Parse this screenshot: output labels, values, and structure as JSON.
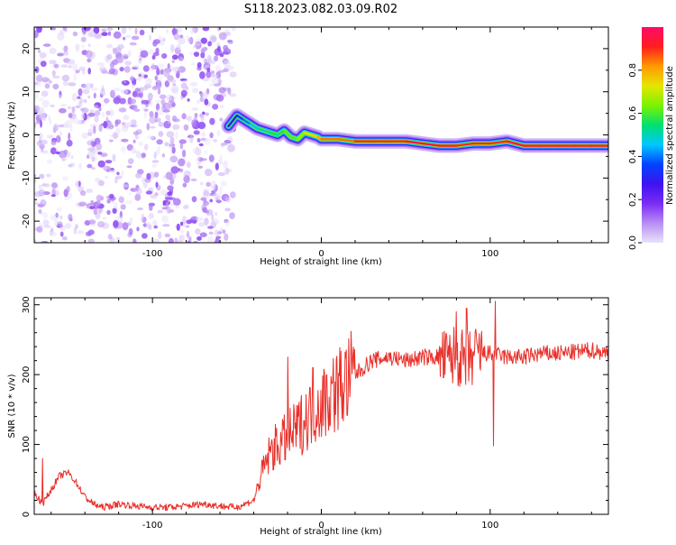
{
  "title": "S118.2023.082.03.09.R02",
  "colors": {
    "snr_line": "#e8302a",
    "axis": "#000000",
    "colorbar_stops": [
      "#e9e3fb",
      "#b98cf3",
      "#7a2cf5",
      "#3e12f0",
      "#0044ff",
      "#00c8ff",
      "#00e070",
      "#7cf200",
      "#e6e600",
      "#ff9a00",
      "#ff1e1e",
      "#ff0b6a"
    ]
  },
  "chart_data": [
    {
      "type": "heatmap",
      "name": "spectrogram",
      "xlabel": "Height of straight line (km)",
      "ylabel": "Frequency (Hz)",
      "xlim": [
        -170,
        170
      ],
      "ylim": [
        -25,
        25
      ],
      "x_ticks": [
        -100,
        0,
        100
      ],
      "y_ticks": [
        -20,
        -10,
        0,
        10,
        20
      ],
      "x_tick_labels": [
        "-100",
        "0",
        "100"
      ],
      "y_tick_labels": [
        "-20",
        "-10",
        "0",
        "10",
        "20"
      ],
      "grid": false,
      "noise_region_x": [
        -170,
        -52
      ],
      "signal_ridge": {
        "x": [
          -55,
          -50,
          -46,
          -42,
          -38,
          -34,
          -30,
          -26,
          -22,
          -18,
          -14,
          -10,
          -6,
          -2,
          0,
          10,
          20,
          30,
          40,
          50,
          60,
          70,
          80,
          90,
          100,
          110,
          120,
          130,
          140,
          150,
          160,
          170
        ],
        "frequency_hz": [
          2.0,
          4.5,
          3.5,
          2.5,
          1.5,
          1.0,
          0.5,
          0.0,
          1.0,
          -0.5,
          -1.0,
          0.5,
          0.0,
          -0.5,
          -1.0,
          -1.0,
          -1.5,
          -1.5,
          -1.5,
          -1.5,
          -2.0,
          -2.5,
          -2.5,
          -2.0,
          -2.0,
          -1.5,
          -2.5,
          -2.5,
          -2.5,
          -2.5,
          -2.5,
          -2.5
        ],
        "amplitude": [
          0.3,
          0.35,
          0.4,
          0.45,
          0.5,
          0.5,
          0.55,
          0.55,
          0.6,
          0.6,
          0.65,
          0.7,
          0.75,
          0.8,
          0.85,
          0.85,
          0.9,
          0.9,
          0.9,
          0.95,
          0.95,
          0.95,
          0.9,
          0.9,
          0.9,
          0.95,
          0.95,
          0.95,
          0.95,
          0.95,
          0.95,
          0.95
        ]
      },
      "colorbar": {
        "label": "Normalized spectral amplitude",
        "range": [
          0.0,
          1.0
        ],
        "ticks": [
          0.0,
          0.2,
          0.4,
          0.6,
          0.8
        ],
        "tick_labels": [
          "0.0",
          "0.2",
          "0.4",
          "0.6",
          "0.8"
        ]
      }
    },
    {
      "type": "line",
      "name": "snr",
      "xlabel": "Height of straight line (km)",
      "ylabel": "SNR (10 * v/v)",
      "xlim": [
        -170,
        170
      ],
      "ylim": [
        0,
        310
      ],
      "x_ticks": [
        -100,
        0,
        100
      ],
      "y_ticks": [
        0,
        100,
        200,
        300
      ],
      "x_tick_labels": [
        "-100",
        "0",
        "100"
      ],
      "y_tick_labels": [
        "0",
        "100",
        "200",
        "300"
      ],
      "grid": false,
      "series": [
        {
          "x": [
            -170,
            -165,
            -160,
            -155,
            -150,
            -145,
            -140,
            -135,
            -130,
            -125,
            -120,
            -110,
            -100,
            -90,
            -80,
            -70,
            -60,
            -50,
            -45,
            -40,
            -35,
            -30,
            -25,
            -20,
            -15,
            -10,
            -5,
            0,
            5,
            10,
            15,
            20,
            25,
            30,
            40,
            50,
            60,
            70,
            75,
            80,
            85,
            90,
            95,
            100,
            110,
            120,
            130,
            140,
            150,
            160,
            170
          ],
          "y": [
            30,
            15,
            35,
            55,
            60,
            45,
            25,
            15,
            10,
            12,
            15,
            12,
            10,
            10,
            12,
            15,
            12,
            10,
            15,
            20,
            60,
            90,
            100,
            110,
            120,
            135,
            150,
            160,
            170,
            180,
            190,
            200,
            210,
            220,
            225,
            220,
            225,
            225,
            220,
            230,
            215,
            225,
            230,
            230,
            225,
            225,
            230,
            230,
            232,
            235,
            230
          ],
          "spikes": [
            {
              "x": -165,
              "y": 80
            },
            {
              "x": -20,
              "y": 225
            },
            {
              "x": -5,
              "y": 210
            },
            {
              "x": 80,
              "y": 290
            },
            {
              "x": 86,
              "y": 295
            },
            {
              "x": 103,
              "y": 305
            },
            {
              "x": 102,
              "y": 98
            }
          ]
        }
      ]
    }
  ]
}
